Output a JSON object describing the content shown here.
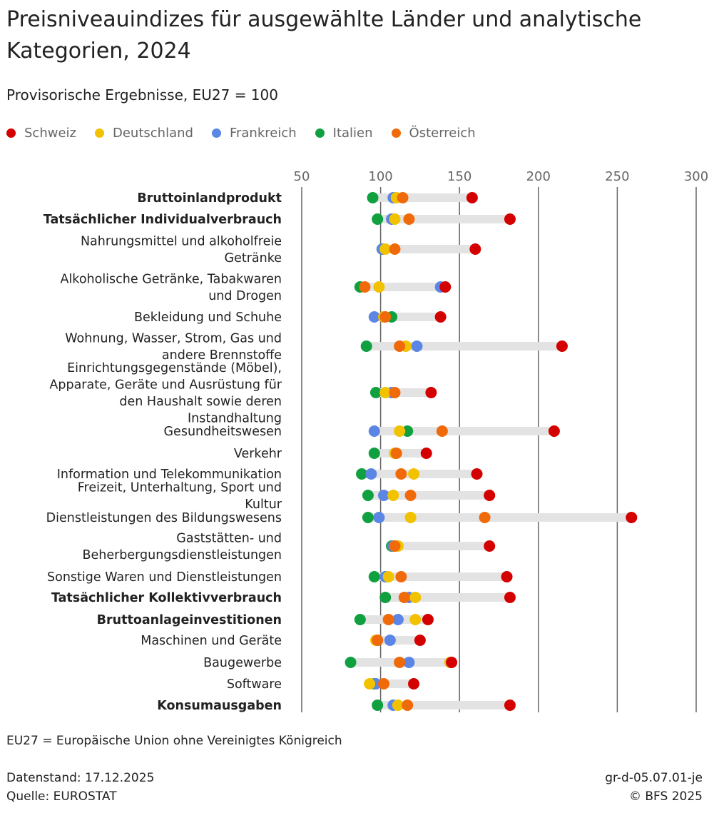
{
  "title": "Preisniveauindizes für ausgewählte Länder und analytische Kategorien, 2024",
  "subtitle": "Provisorische Ergebnisse, EU27 = 100",
  "footnote": "EU27 = Europäische Union ohne Vereinigtes Königreich",
  "data_status": "Datenstand: 17.12.2025",
  "source": "Quelle: EUROSTAT",
  "code": "gr-d-05.07.01-je",
  "copyright": "© BFS 2025",
  "chart_data": {
    "type": "scatter",
    "subtype": "dot-plot",
    "xlim": [
      50,
      300
    ],
    "xticks": [
      50,
      100,
      150,
      200,
      250,
      300
    ],
    "grid": true,
    "legend_position": "top-left",
    "series": [
      {
        "name": "Schweiz",
        "color": "#d40000"
      },
      {
        "name": "Deutschland",
        "color": "#f2c200"
      },
      {
        "name": "Frankreich",
        "color": "#5b86e5"
      },
      {
        "name": "Italien",
        "color": "#10a040"
      },
      {
        "name": "Österreich",
        "color": "#f06a0a"
      }
    ],
    "categories": [
      {
        "label": "Bruttoinlandprodukt",
        "bold": true,
        "values": {
          "Schweiz": 158,
          "Deutschland": 110,
          "Frankreich": 108,
          "Italien": 95,
          "Österreich": 114
        }
      },
      {
        "label": "Tatsächlicher Individualverbrauch",
        "bold": true,
        "values": {
          "Schweiz": 182,
          "Deutschland": 109,
          "Frankreich": 107,
          "Italien": 98,
          "Österreich": 118
        }
      },
      {
        "label": "Nahrungsmittel und alkoholfreie Getränke",
        "bold": false,
        "values": {
          "Schweiz": 160,
          "Deutschland": 103,
          "Frankreich": 101,
          "Italien": 101,
          "Österreich": 109
        }
      },
      {
        "label": "Alkoholische Getränke, Tabakwaren und Drogen",
        "bold": false,
        "values": {
          "Schweiz": 141,
          "Deutschland": 99,
          "Frankreich": 138,
          "Italien": 87,
          "Österreich": 90
        }
      },
      {
        "label": "Bekleidung und Schuhe",
        "bold": false,
        "values": {
          "Schweiz": 138,
          "Deutschland": 102,
          "Frankreich": 96,
          "Italien": 107,
          "Österreich": 103
        }
      },
      {
        "label": "Wohnung, Wasser, Strom, Gas und andere Brennstoffe",
        "bold": false,
        "values": {
          "Schweiz": 215,
          "Deutschland": 116,
          "Frankreich": 123,
          "Italien": 91,
          "Österreich": 112
        }
      },
      {
        "label": "Einrichtungsgegenstände (Möbel), Apparate, Geräte und Ausrüstung für den Haushalt sowie deren Instandhaltung",
        "bold": false,
        "values": {
          "Schweiz": 132,
          "Deutschland": 103,
          "Frankreich": 107,
          "Italien": 97,
          "Österreich": 109
        }
      },
      {
        "label": "Gesundheitswesen",
        "bold": false,
        "values": {
          "Schweiz": 210,
          "Deutschland": 112,
          "Frankreich": 96,
          "Italien": 117,
          "Österreich": 139
        }
      },
      {
        "label": "Verkehr",
        "bold": false,
        "values": {
          "Schweiz": 129,
          "Deutschland": 109,
          "Frankreich": 109,
          "Italien": 96,
          "Österreich": 110
        }
      },
      {
        "label": "Information und Telekommunikation",
        "bold": false,
        "values": {
          "Schweiz": 161,
          "Deutschland": 121,
          "Frankreich": 94,
          "Italien": 88,
          "Österreich": 113
        }
      },
      {
        "label": "Freizeit, Unterhaltung, Sport und Kultur",
        "bold": false,
        "values": {
          "Schweiz": 169,
          "Deutschland": 108,
          "Frankreich": 102,
          "Italien": 92,
          "Österreich": 119
        }
      },
      {
        "label": "Dienstleistungen des Bildungswesens",
        "bold": false,
        "values": {
          "Schweiz": 259,
          "Deutschland": 119,
          "Frankreich": 99,
          "Italien": 92,
          "Österreich": 166
        }
      },
      {
        "label": "Gaststätten- und Beherbergungsdienstleistungen",
        "bold": false,
        "values": {
          "Schweiz": 169,
          "Deutschland": 111,
          "Frankreich": 108,
          "Italien": 107,
          "Österreich": 109
        }
      },
      {
        "label": "Sonstige Waren und Dienstleistungen",
        "bold": false,
        "values": {
          "Schweiz": 180,
          "Deutschland": 105,
          "Frankreich": 103,
          "Italien": 96,
          "Österreich": 113
        }
      },
      {
        "label": "Tatsächlicher Kollektivverbrauch",
        "bold": true,
        "values": {
          "Schweiz": 182,
          "Deutschland": 122,
          "Frankreich": 118,
          "Italien": 103,
          "Österreich": 115
        }
      },
      {
        "label": "Bruttoanlageinvestitionen",
        "bold": true,
        "values": {
          "Schweiz": 130,
          "Deutschland": 122,
          "Frankreich": 111,
          "Italien": 87,
          "Österreich": 105
        }
      },
      {
        "label": "Maschinen und Geräte",
        "bold": false,
        "values": {
          "Schweiz": 125,
          "Deutschland": 97,
          "Frankreich": 106,
          "Italien": 98,
          "Österreich": 98
        }
      },
      {
        "label": "Baugewerbe",
        "bold": false,
        "values": {
          "Schweiz": 145,
          "Deutschland": 144,
          "Frankreich": 118,
          "Italien": 81,
          "Österreich": 112
        }
      },
      {
        "label": "Software",
        "bold": false,
        "values": {
          "Schweiz": 121,
          "Deutschland": 93,
          "Frankreich": 97,
          "Italien": 96,
          "Österreich": 102
        }
      },
      {
        "label": "Konsumausgaben",
        "bold": true,
        "values": {
          "Schweiz": 182,
          "Deutschland": 111,
          "Frankreich": 108,
          "Italien": 98,
          "Österreich": 117
        }
      }
    ]
  }
}
